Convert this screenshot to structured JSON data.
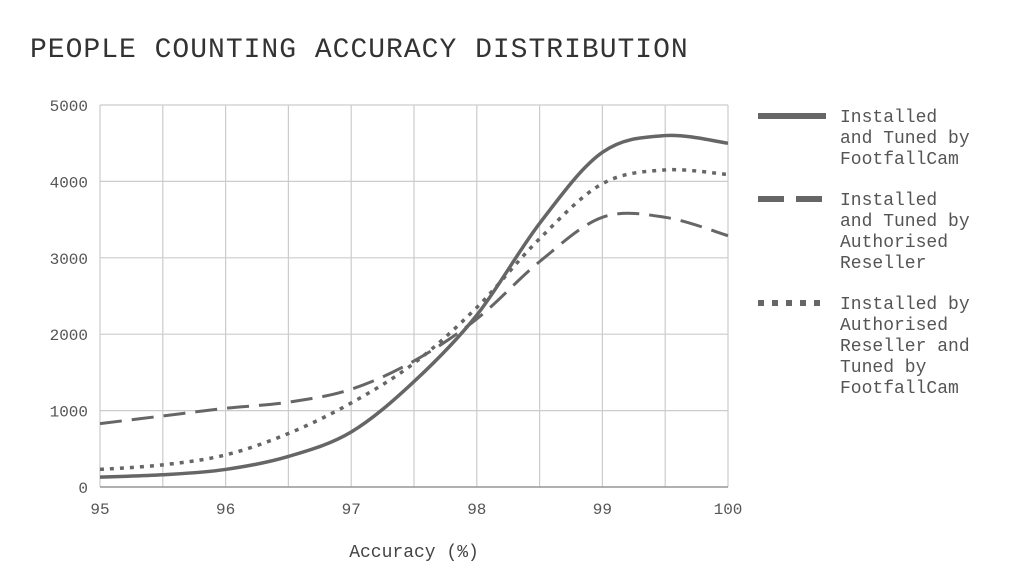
{
  "chart_data": {
    "type": "line",
    "title": "PEOPLE COUNTING ACCURACY DISTRIBUTION",
    "xlabel": "Accuracy (%)",
    "ylabel": "",
    "xlim": [
      95,
      100
    ],
    "ylim": [
      0,
      5000
    ],
    "x_ticks": [
      95,
      96,
      97,
      98,
      99,
      100
    ],
    "y_ticks": [
      0,
      1000,
      2000,
      3000,
      4000,
      5000
    ],
    "grid": true,
    "legend_position": "right",
    "colors": {
      "line": "#666666",
      "grid": "#cccccc",
      "text": "#555555"
    },
    "series": [
      {
        "name": "Installed and Tuned by FootfallCam",
        "legend_lines": [
          "Installed",
          "and Tuned by",
          "FootfallCam"
        ],
        "style": "solid",
        "x": [
          95,
          95.5,
          96,
          96.5,
          97,
          97.5,
          98,
          98.5,
          99,
          99.5,
          100
        ],
        "y": [
          130,
          160,
          230,
          400,
          720,
          1380,
          2250,
          3450,
          4380,
          4600,
          4500
        ]
      },
      {
        "name": "Installed and Tuned by Authorised Reseller",
        "legend_lines": [
          "Installed",
          "and Tuned by",
          "Authorised",
          "Reseller"
        ],
        "style": "dashed",
        "x": [
          95,
          95.5,
          96,
          96.5,
          97,
          97.5,
          98,
          98.5,
          99,
          99.5,
          100
        ],
        "y": [
          830,
          930,
          1030,
          1110,
          1280,
          1650,
          2200,
          2950,
          3530,
          3530,
          3290
        ]
      },
      {
        "name": "Installed by Authorised Reseller and Tuned by FootfallCam",
        "legend_lines": [
          "Installed by",
          "Authorised",
          "Reseller and",
          "Tuned by",
          "FootfallCam"
        ],
        "style": "dotted",
        "x": [
          95,
          95.5,
          96,
          96.5,
          97,
          97.5,
          98,
          98.5,
          99,
          99.5,
          100
        ],
        "y": [
          230,
          290,
          420,
          700,
          1100,
          1620,
          2350,
          3250,
          3970,
          4150,
          4090
        ]
      }
    ]
  }
}
